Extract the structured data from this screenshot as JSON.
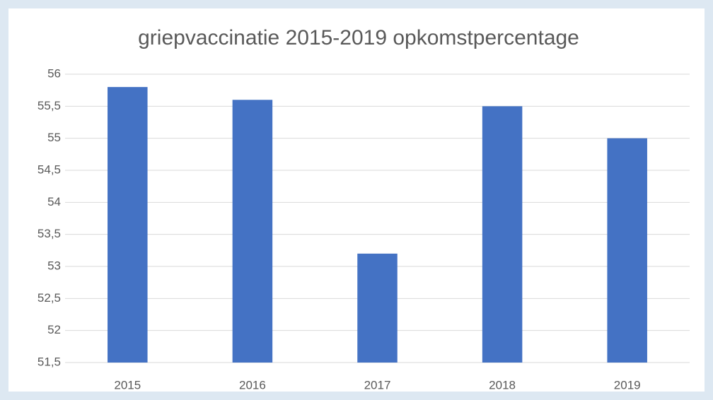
{
  "chart_data": {
    "type": "bar",
    "title": "griepvaccinatie 2015-2019 opkomstpercentage",
    "categories": [
      "2015",
      "2016",
      "2017",
      "2018",
      "2019"
    ],
    "values": [
      55.8,
      55.6,
      53.2,
      55.5,
      55.0
    ],
    "color": "#4472c4",
    "ylim": [
      51.5,
      56
    ],
    "yticks": [
      {
        "value": 51.5,
        "label": "51,5"
      },
      52,
      {
        "value": 52.5,
        "label": "52,5"
      },
      53,
      {
        "value": 53.5,
        "label": "53,5"
      },
      54,
      {
        "value": 54.5,
        "label": "54,5"
      },
      55,
      {
        "value": 55.5,
        "label": "55,5"
      },
      56
    ],
    "grid": true
  }
}
